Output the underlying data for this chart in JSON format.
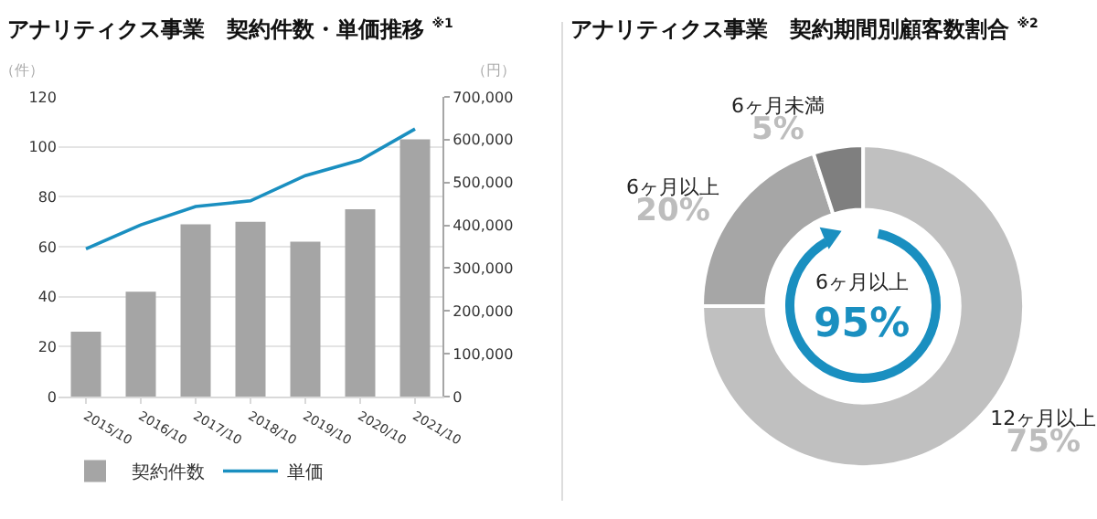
{
  "chart_data": [
    {
      "type": "bar",
      "title": "アナリティクス事業　契約件数・単価推移 $^{※1}$",
      "ylabel": "（件）",
      "y2label": "（円）",
      "categories": [
        "2015/10",
        "2016/10",
        "2017/10",
        "2018/10",
        "2019/10",
        "2020/10",
        "2021/10"
      ],
      "series": [
        {
          "name": "契約件数",
          "type": "bar",
          "color": "#a5a5a5",
          "values": [
            26,
            42,
            69,
            70,
            62,
            75,
            103
          ]
        },
        {
          "name": "単価",
          "type": "line",
          "axis": "y2",
          "color": "#1a8fc0",
          "values": [
            345000,
            401000,
            444000,
            457000,
            516000,
            552000,
            625000
          ]
        }
      ],
      "ylim": [
        0,
        120
      ],
      "yticks": [
        0,
        20,
        40,
        60,
        80,
        100,
        120
      ],
      "y2lim": [
        0,
        700000
      ],
      "y2ticks": [
        {
          "value": 0,
          "label": "0"
        },
        {
          "value": 100000,
          "label": "100,000"
        },
        {
          "value": 200000,
          "label": "200,000"
        },
        {
          "value": 300000,
          "label": "300,000"
        },
        {
          "value": 400000,
          "label": "400,000"
        },
        {
          "value": 500000,
          "label": "500,000"
        },
        {
          "value": 600000,
          "label": "600,000"
        },
        {
          "value": 700000,
          "label": "700,000"
        }
      ],
      "grid": "y",
      "legend": "bottom left",
      "marker": "none",
      "line_style": "solid"
    },
    {
      "type": "donut",
      "title": "アナリティクス事業　契約期間別顧客数割合 $^{※2}$",
      "categories": [
        "12ヶ月以上",
        "6ヶ月以上",
        "6ヶ月未満"
      ],
      "values": [
        75,
        20,
        5
      ],
      "colors": [
        "#c0c0c0",
        "#a6a6a6",
        "#7f7f7f"
      ],
      "value_labels": [
        "75%",
        "20%",
        "5%"
      ],
      "annotations": [
        "6ヶ月以上",
        "95%"
      ],
      "legend": false
    }
  ]
}
